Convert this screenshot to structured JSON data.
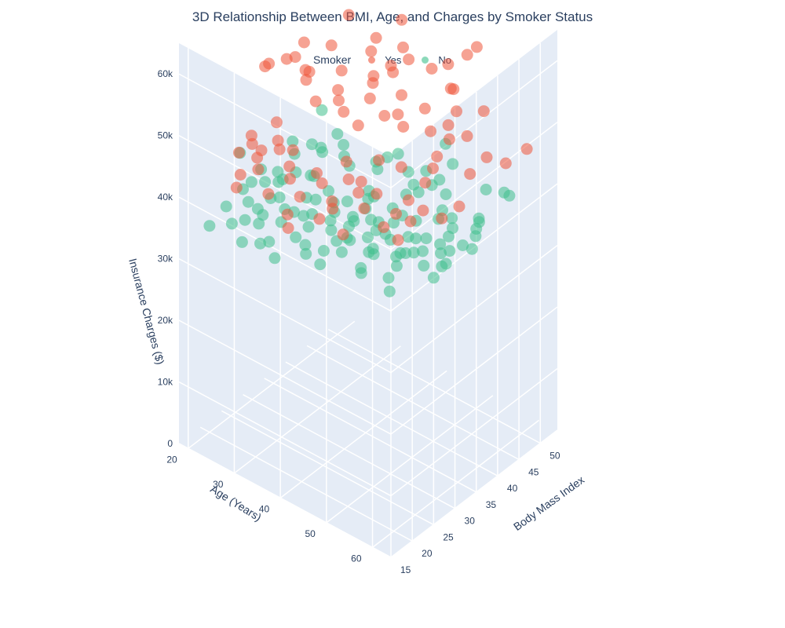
{
  "chart_data": {
    "type": "scatter",
    "title": "3D Relationship Between BMI, Age, and Charges by Smoker Status",
    "legend": {
      "title": "Smoker",
      "placement": "top-center"
    },
    "series": [
      {
        "name": "Yes",
        "color": "#ef553b"
      },
      {
        "name": "No",
        "color": "#3fbf8c"
      }
    ],
    "axes": {
      "x": {
        "label": "Body Mass Index",
        "range": [
          15,
          54
        ],
        "ticks": [
          "15",
          "20",
          "25",
          "30",
          "35",
          "40",
          "45",
          "50"
        ]
      },
      "y": {
        "label": "Age (Years)",
        "range": [
          18,
          64
        ],
        "ticks": [
          "20",
          "30",
          "40",
          "50",
          "60"
        ]
      },
      "z": {
        "label": "Insurance Charges ($)",
        "range": [
          0,
          65000
        ],
        "ticks": [
          "0",
          "10k",
          "20k",
          "30k",
          "40k",
          "50k",
          "60k"
        ]
      }
    },
    "points": {
      "Yes": [
        [
          32,
          18,
          17000
        ],
        [
          28,
          19,
          16500
        ],
        [
          30,
          20,
          18000
        ],
        [
          35,
          19,
          38000
        ],
        [
          33,
          20,
          40000
        ],
        [
          37,
          21,
          39000
        ],
        [
          40,
          22,
          42000
        ],
        [
          30,
          22,
          17500
        ],
        [
          24,
          23,
          16800
        ],
        [
          22,
          24,
          15500
        ],
        [
          26,
          25,
          18000
        ],
        [
          31,
          25,
          19200
        ],
        [
          36,
          26,
          40500
        ],
        [
          41,
          27,
          44000
        ],
        [
          34,
          28,
          41000
        ],
        [
          29,
          29,
          19000
        ],
        [
          23,
          30,
          17200
        ],
        [
          27,
          31,
          18700
        ],
        [
          33,
          31,
          37500
        ],
        [
          38,
          32,
          43000
        ],
        [
          45,
          33,
          47000
        ],
        [
          35,
          34,
          41500
        ],
        [
          30,
          34,
          19800
        ],
        [
          25,
          35,
          18200
        ],
        [
          21,
          36,
          17500
        ],
        [
          28,
          37,
          21000
        ],
        [
          32,
          38,
          40800
        ],
        [
          39,
          38,
          45000
        ],
        [
          42,
          39,
          46000
        ],
        [
          36,
          40,
          42500
        ],
        [
          31,
          40,
          21500
        ],
        [
          26,
          41,
          20500
        ],
        [
          22,
          42,
          19800
        ],
        [
          24,
          43,
          21800
        ],
        [
          29,
          44,
          22500
        ],
        [
          34,
          45,
          43000
        ],
        [
          38,
          45,
          45500
        ],
        [
          44,
          46,
          48500
        ],
        [
          35,
          47,
          44000
        ],
        [
          30,
          47,
          23500
        ],
        [
          26,
          48,
          23800
        ],
        [
          20,
          49,
          22500
        ],
        [
          33,
          50,
          44500
        ],
        [
          37,
          51,
          47000
        ],
        [
          42,
          52,
          49000
        ],
        [
          48,
          50,
          52000
        ],
        [
          31,
          53,
          25200
        ],
        [
          27,
          54,
          25800
        ],
        [
          23,
          55,
          26500
        ],
        [
          34,
          55,
          46000
        ],
        [
          39,
          56,
          48000
        ],
        [
          36,
          57,
          47500
        ],
        [
          29,
          58,
          28000
        ],
        [
          25,
          59,
          29500
        ],
        [
          33,
          60,
          48500
        ],
        [
          40,
          61,
          51000
        ],
        [
          35,
          62,
          49000
        ],
        [
          28,
          63,
          30500
        ],
        [
          31,
          64,
          32000
        ],
        [
          47,
          53,
          58000
        ],
        [
          34,
          60,
          63700
        ],
        [
          52,
          19,
          62000
        ],
        [
          36,
          45,
          55000
        ],
        [
          44,
          28,
          51500
        ],
        [
          46,
          31,
          40000
        ],
        [
          50,
          44,
          42000
        ],
        [
          27,
          62,
          47000
        ],
        [
          21,
          60,
          28500
        ],
        [
          38,
          25,
          37000
        ],
        [
          41,
          36,
          39000
        ],
        [
          29,
          22,
          16200
        ],
        [
          32,
          27,
          19500
        ],
        [
          37,
          41,
          22200
        ],
        [
          42,
          49,
          24500
        ],
        [
          45,
          57,
          27500
        ],
        [
          49,
          62,
          30000
        ],
        [
          26,
          29,
          36500
        ],
        [
          24,
          46,
          39500
        ],
        [
          21,
          52,
          41000
        ],
        [
          19,
          38,
          16800
        ],
        [
          22,
          33,
          38000
        ],
        [
          25,
          57,
          45500
        ],
        [
          30,
          43,
          42500
        ],
        [
          44,
          41,
          47500
        ],
        [
          47,
          37,
          45000
        ],
        [
          51,
          33,
          46500
        ],
        [
          39,
          21,
          37500
        ],
        [
          33,
          36,
          41800
        ],
        [
          36,
          52,
          24800
        ],
        [
          40,
          58,
          28200
        ],
        [
          43,
          63,
          32500
        ]
      ],
      "No": [
        [
          30,
          18,
          1700
        ],
        [
          25,
          19,
          2200
        ],
        [
          33,
          20,
          2500
        ],
        [
          28,
          21,
          2100
        ],
        [
          35,
          22,
          2800
        ],
        [
          22,
          23,
          3000
        ],
        [
          27,
          24,
          3300
        ],
        [
          31,
          25,
          3600
        ],
        [
          38,
          26,
          3900
        ],
        [
          24,
          27,
          4100
        ],
        [
          29,
          28,
          4300
        ],
        [
          33,
          29,
          4600
        ],
        [
          26,
          30,
          4900
        ],
        [
          36,
          31,
          5200
        ],
        [
          21,
          32,
          5400
        ],
        [
          30,
          33,
          5700
        ],
        [
          34,
          34,
          6000
        ],
        [
          27,
          35,
          6300
        ],
        [
          32,
          36,
          6600
        ],
        [
          39,
          37,
          6900
        ],
        [
          23,
          38,
          7100
        ],
        [
          28,
          39,
          7400
        ],
        [
          35,
          40,
          7800
        ],
        [
          30,
          41,
          8100
        ],
        [
          26,
          42,
          8400
        ],
        [
          33,
          43,
          8700
        ],
        [
          37,
          44,
          9000
        ],
        [
          24,
          45,
          9300
        ],
        [
          29,
          46,
          9600
        ],
        [
          34,
          47,
          9900
        ],
        [
          31,
          48,
          10200
        ],
        [
          27,
          49,
          10500
        ],
        [
          36,
          50,
          10800
        ],
        [
          22,
          51,
          11100
        ],
        [
          32,
          52,
          11400
        ],
        [
          38,
          53,
          11700
        ],
        [
          28,
          54,
          12000
        ],
        [
          33,
          55,
          12300
        ],
        [
          25,
          56,
          12600
        ],
        [
          30,
          57,
          12900
        ],
        [
          35,
          58,
          13200
        ],
        [
          41,
          59,
          13500
        ],
        [
          27,
          60,
          13800
        ],
        [
          32,
          61,
          14100
        ],
        [
          37,
          62,
          14400
        ],
        [
          29,
          63,
          14700
        ],
        [
          34,
          64,
          15000
        ],
        [
          44,
          20,
          3100
        ],
        [
          46,
          25,
          4800
        ],
        [
          42,
          30,
          6200
        ],
        [
          48,
          35,
          7800
        ],
        [
          45,
          40,
          9100
        ],
        [
          50,
          45,
          10400
        ],
        [
          43,
          50,
          12000
        ],
        [
          47,
          55,
          13300
        ],
        [
          40,
          60,
          14200
        ],
        [
          20,
          20,
          2000
        ],
        [
          19,
          28,
          4200
        ],
        [
          18,
          36,
          6500
        ],
        [
          20,
          44,
          8800
        ],
        [
          21,
          52,
          11300
        ],
        [
          19,
          60,
          13900
        ],
        [
          25,
          22,
          22000
        ],
        [
          31,
          34,
          27000
        ],
        [
          28,
          47,
          24000
        ],
        [
          35,
          56,
          30000
        ],
        [
          23,
          62,
          28500
        ],
        [
          39,
          41,
          21000
        ],
        [
          33,
          26,
          20500
        ],
        [
          27,
          38,
          33000
        ],
        [
          44,
          49,
          26500
        ],
        [
          30,
          59,
          36000
        ],
        [
          37,
          32,
          23500
        ],
        [
          24,
          53,
          25500
        ],
        [
          42,
          24,
          19500
        ],
        [
          29,
          43,
          12500
        ],
        [
          34,
          29,
          10800
        ],
        [
          26,
          57,
          16500
        ],
        [
          38,
          46,
          14000
        ],
        [
          31,
          21,
          9500
        ],
        [
          46,
          61,
          17200
        ],
        [
          22,
          48,
          18500
        ],
        [
          35,
          64,
          20500
        ],
        [
          41,
          37,
          11800
        ],
        [
          28,
          33,
          7200
        ],
        [
          32,
          40,
          8300
        ],
        [
          36,
          47,
          10100
        ],
        [
          25,
          51,
          12400
        ],
        [
          30,
          24,
          3600
        ],
        [
          33,
          58,
          12800
        ],
        [
          27,
          44,
          9200
        ],
        [
          39,
          55,
          12500
        ],
        [
          24,
          35,
          6100
        ],
        [
          29,
          30,
          5000
        ],
        [
          34,
          62,
          14600
        ],
        [
          31,
          46,
          9800
        ],
        [
          37,
          23,
          3800
        ],
        [
          26,
          26,
          4000
        ],
        [
          43,
          43,
          9500
        ],
        [
          48,
          58,
          13700
        ],
        [
          20,
          31,
          5100
        ],
        [
          22,
          57,
          12700
        ],
        [
          45,
          33,
          6800
        ],
        [
          40,
          52,
          11600
        ],
        [
          36,
          20,
          2600
        ],
        [
          28,
          63,
          14900
        ],
        [
          32,
          18,
          1900
        ],
        [
          41,
          19,
          2300
        ],
        [
          25,
          64,
          15200
        ],
        [
          35,
          36,
          6900
        ],
        [
          30,
          50,
          11000
        ],
        [
          27,
          54,
          11900
        ],
        [
          33,
          31,
          5600
        ],
        [
          38,
          39,
          7700
        ],
        [
          23,
          42,
          8400
        ],
        [
          29,
          56,
          12700
        ],
        [
          34,
          22,
          3000
        ],
        [
          31,
          60,
          13600
        ],
        [
          26,
          49,
          10400
        ],
        [
          42,
          45,
          9700
        ],
        [
          37,
          57,
          13000
        ],
        [
          21,
          40,
          7900
        ],
        [
          44,
          27,
          4800
        ],
        [
          47,
          42,
          8900
        ],
        [
          24,
          24,
          2900
        ],
        [
          30,
          37,
          6800
        ]
      ]
    }
  }
}
